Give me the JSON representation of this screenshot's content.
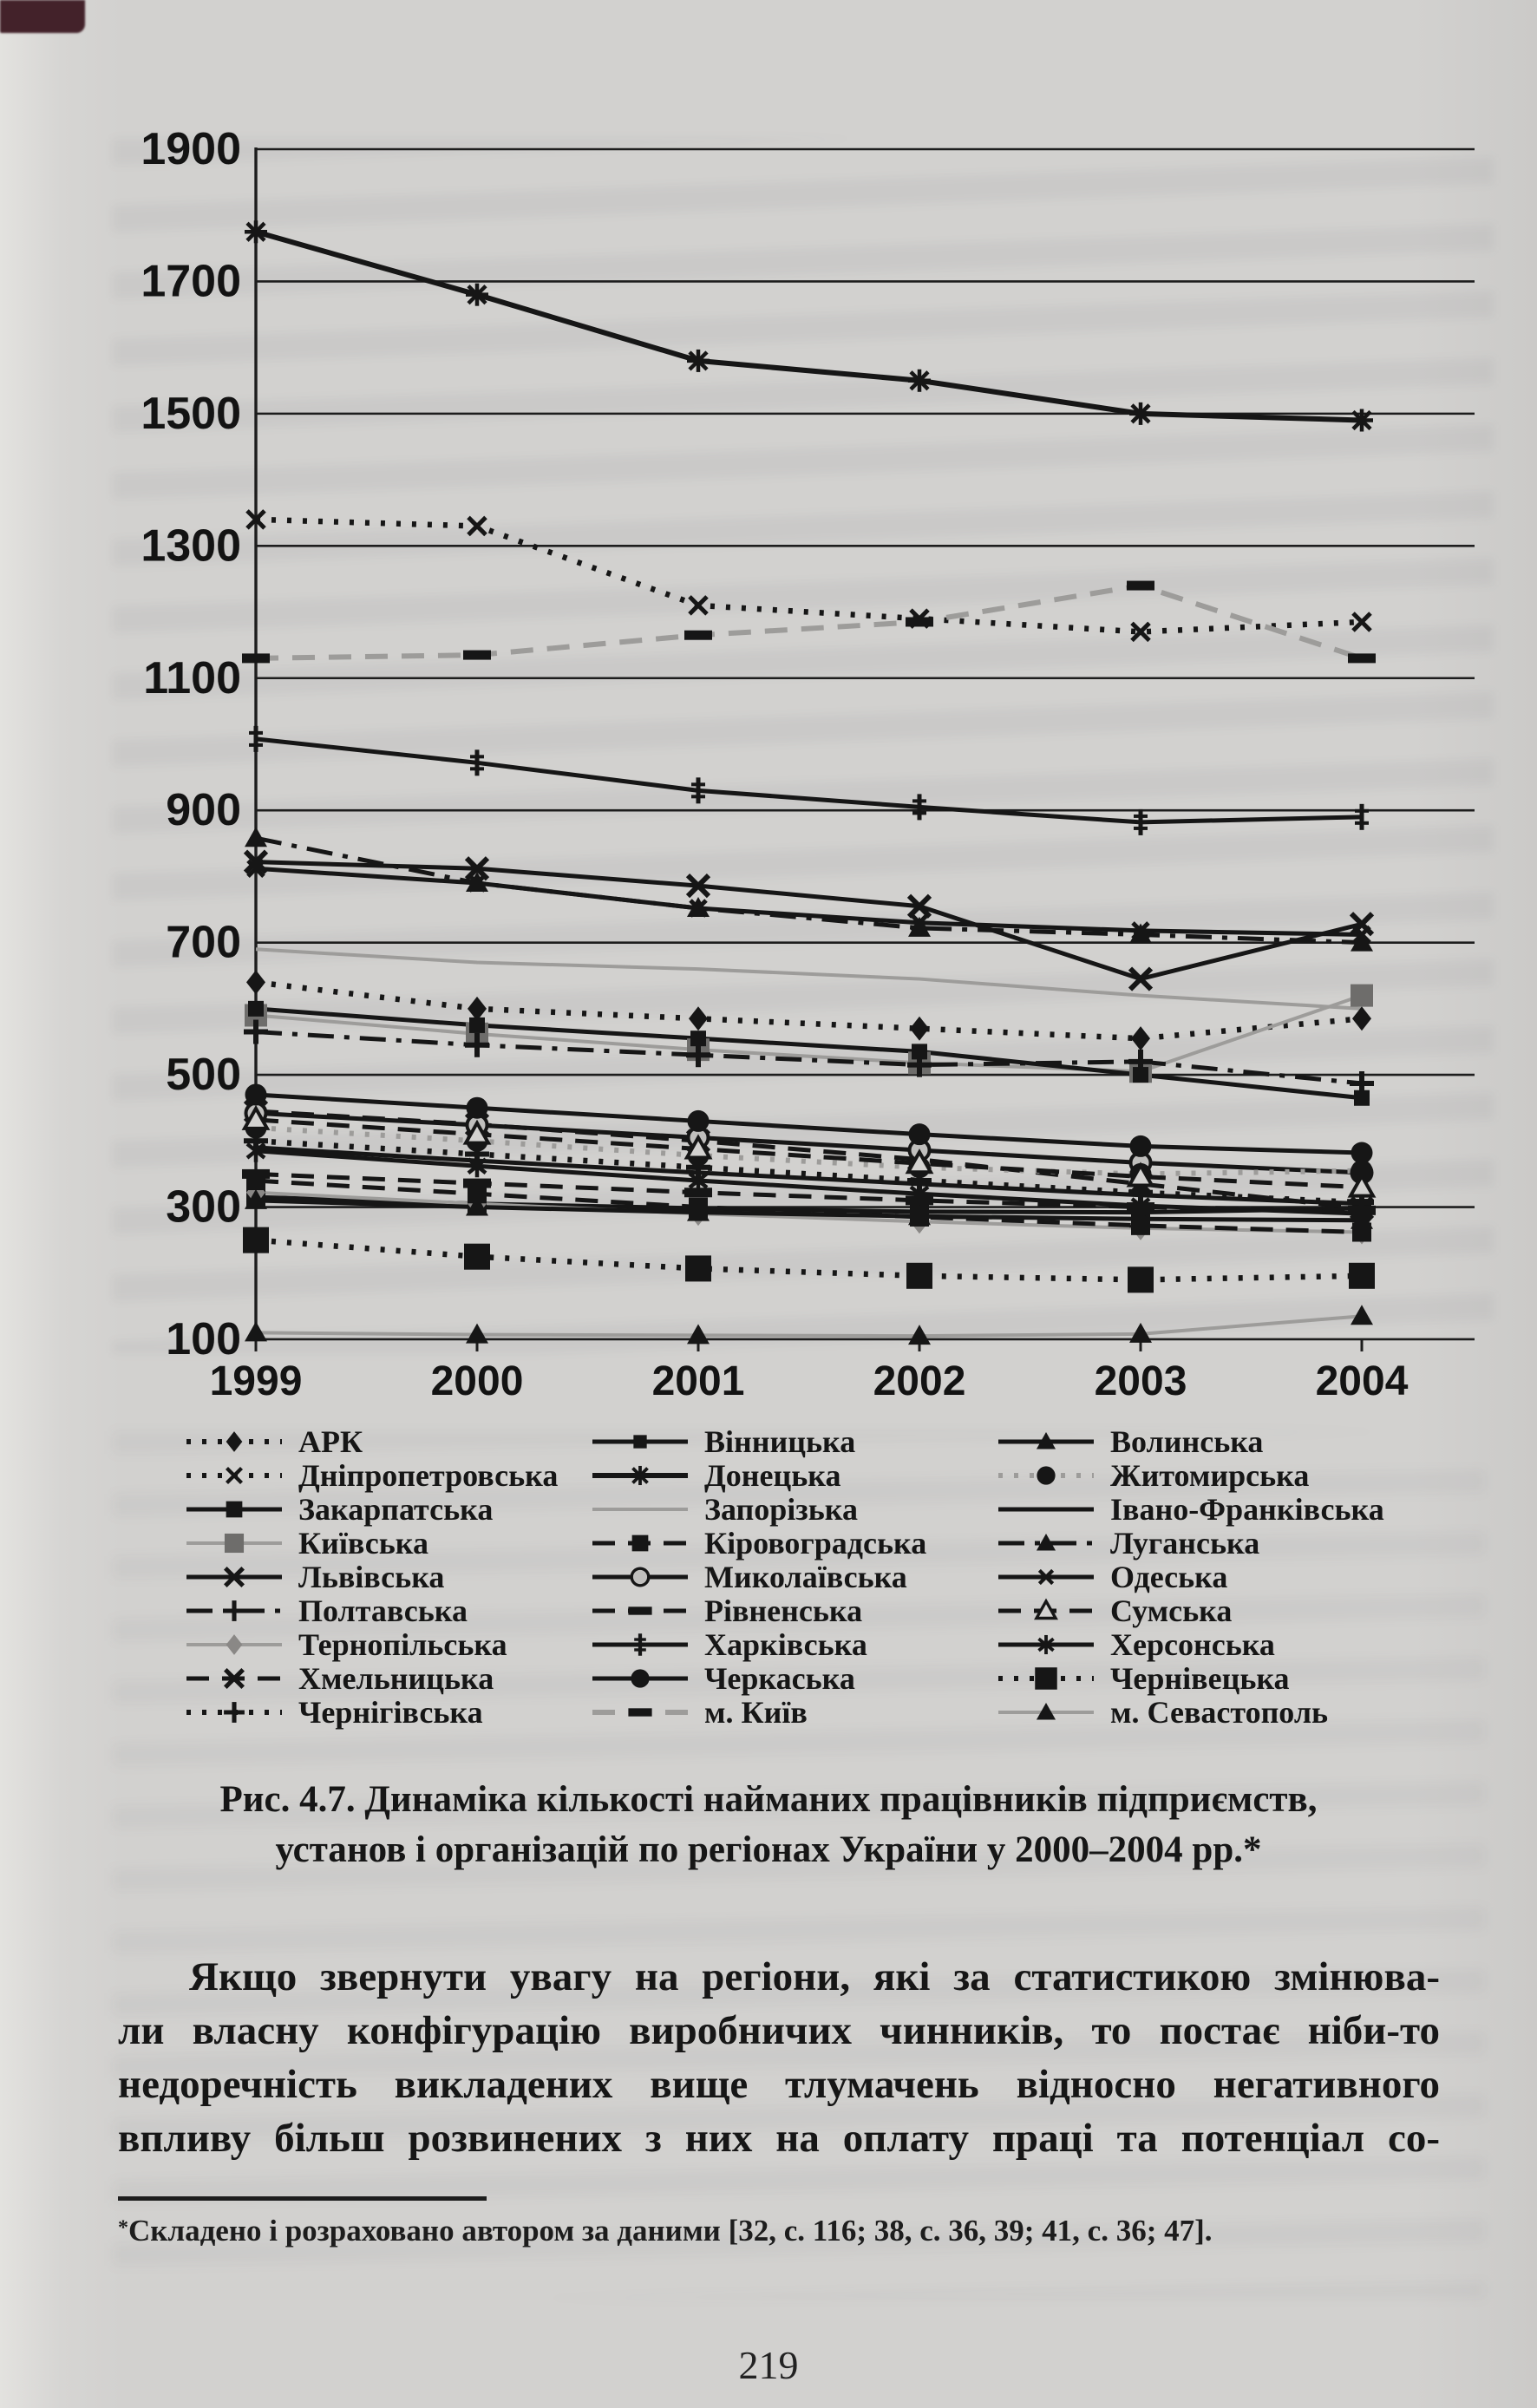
{
  "page": {
    "number": "219"
  },
  "figure": {
    "caption_line1": "Рис. 4.7. Динаміка кількості найманих працівників підприємств,",
    "caption_line2": "установ і організацій по регіонах України у 2000–2004 рр.*"
  },
  "paragraph": {
    "lines": [
      "Якщо звернути увагу на регіони, які за статистикою змінюва-",
      "ли власну конфігурацію виробничих чинників, то постає ніби-то",
      "недоречність викладених вище тлумачень відносно негативного",
      "впливу більш розвинених з них на оплату праці та потенціал со-"
    ]
  },
  "footnote": {
    "marker": "*",
    "text": "Складено і розраховано автором за даними [32, с. 116; 38, с. 36, 39; 41, с. 36; 47]."
  },
  "chart_data": {
    "type": "line",
    "x": [
      1999,
      2000,
      2001,
      2002,
      2003,
      2004
    ],
    "yticks": [
      1900,
      1700,
      1500,
      1300,
      1100,
      900,
      700,
      500,
      300,
      100
    ],
    "ylim": [
      100,
      1900
    ],
    "grid": true,
    "legend_position": "bottom",
    "colors": {
      "black": "#161616",
      "gray": "#9d9c9a",
      "paper": "#d3d2d0"
    },
    "series": [
      {
        "name": "АРК",
        "line": "dotted",
        "marker": "diamond",
        "values": [
          640,
          600,
          585,
          570,
          555,
          585
        ]
      },
      {
        "name": "Дніпропетровська",
        "line": "dotted",
        "marker": "x-thin",
        "values": [
          1340,
          1330,
          1210,
          1190,
          1170,
          1185
        ]
      },
      {
        "name": "Закарпатська",
        "line": "solid",
        "marker": "square",
        "values": [
          315,
          305,
          298,
          293,
          292,
          298
        ]
      },
      {
        "name": "Київська",
        "line": "graysolid",
        "marker": "square-gray",
        "values": [
          590,
          562,
          538,
          518,
          505,
          620
        ]
      },
      {
        "name": "Львівська",
        "line": "solid",
        "marker": "X",
        "values": [
          822,
          812,
          786,
          755,
          645,
          728
        ]
      },
      {
        "name": "Полтавська",
        "line": "dashdot",
        "marker": "plus",
        "values": [
          565,
          545,
          530,
          515,
          520,
          487
        ]
      },
      {
        "name": "Тернопільська",
        "line": "graysolid",
        "marker": "diamond-gray",
        "values": [
          322,
          305,
          290,
          278,
          268,
          262
        ]
      },
      {
        "name": "Хмельницька",
        "line": "dashed",
        "marker": "X",
        "values": [
          445,
          425,
          400,
          372,
          335,
          298
        ]
      },
      {
        "name": "Чернігівська",
        "line": "dotted",
        "marker": "plus",
        "values": [
          400,
          380,
          360,
          340,
          322,
          307
        ]
      },
      {
        "name": "Вінницька",
        "line": "solid",
        "marker": "square-small",
        "values": [
          600,
          575,
          555,
          535,
          500,
          465
        ]
      },
      {
        "name": "Донецька",
        "line": "solid",
        "marker": "star8",
        "values": [
          1775,
          1680,
          1580,
          1550,
          1500,
          1490
        ],
        "width": 6
      },
      {
        "name": "Запорізька",
        "line": "graysolid",
        "marker": "none",
        "values": [
          690,
          670,
          660,
          645,
          620,
          600
        ]
      },
      {
        "name": "Кіровоградська",
        "line": "dashed",
        "marker": "square",
        "values": [
          340,
          320,
          300,
          285,
          272,
          262
        ]
      },
      {
        "name": "Миколаївська",
        "line": "solid",
        "marker": "circle-open",
        "values": [
          442,
          424,
          405,
          386,
          367,
          352
        ]
      },
      {
        "name": "Рівненська",
        "line": "dashed",
        "marker": "hrect",
        "values": [
          350,
          336,
          322,
          310,
          300,
          295
        ]
      },
      {
        "name": "Харківська",
        "line": "solid",
        "marker": "dagger",
        "values": [
          1008,
          972,
          930,
          905,
          882,
          890
        ]
      },
      {
        "name": "Черкаська",
        "line": "solid",
        "marker": "circle",
        "values": [
          470,
          450,
          430,
          410,
          392,
          382
        ]
      },
      {
        "name": "м. Київ",
        "line": "graydash",
        "marker": "hrect",
        "values": [
          1130,
          1135,
          1165,
          1185,
          1240,
          1130
        ]
      },
      {
        "name": "Волинська",
        "line": "solid",
        "marker": "triangle",
        "values": [
          310,
          300,
          292,
          286,
          282,
          280
        ]
      },
      {
        "name": "Житомирська",
        "line": "graydot",
        "marker": "circle",
        "values": [
          420,
          400,
          378,
          360,
          350,
          355
        ]
      },
      {
        "name": "Івано-Франківська",
        "line": "solid",
        "marker": "none",
        "values": [
          390,
          370,
          352,
          335,
          318,
          305
        ]
      },
      {
        "name": "Луганська",
        "line": "dashdot",
        "marker": "triangle",
        "values": [
          858,
          790,
          752,
          722,
          712,
          700
        ]
      },
      {
        "name": "Одеська",
        "line": "solid",
        "marker": "x-small",
        "values": [
          812,
          790,
          752,
          730,
          718,
          712
        ]
      },
      {
        "name": "Сумська",
        "line": "dashed",
        "marker": "triangle-open",
        "values": [
          432,
          410,
          388,
          366,
          346,
          330
        ]
      },
      {
        "name": "Херсонська",
        "line": "solid",
        "marker": "star6",
        "values": [
          385,
          362,
          340,
          320,
          302,
          290
        ]
      },
      {
        "name": "Чернівецька",
        "line": "dotted",
        "marker": "square-big",
        "values": [
          250,
          225,
          207,
          196,
          190,
          196
        ]
      },
      {
        "name": "м. Севастополь",
        "line": "graysolid",
        "marker": "triangle",
        "values": [
          110,
          107,
          106,
          105,
          108,
          135
        ]
      }
    ]
  }
}
